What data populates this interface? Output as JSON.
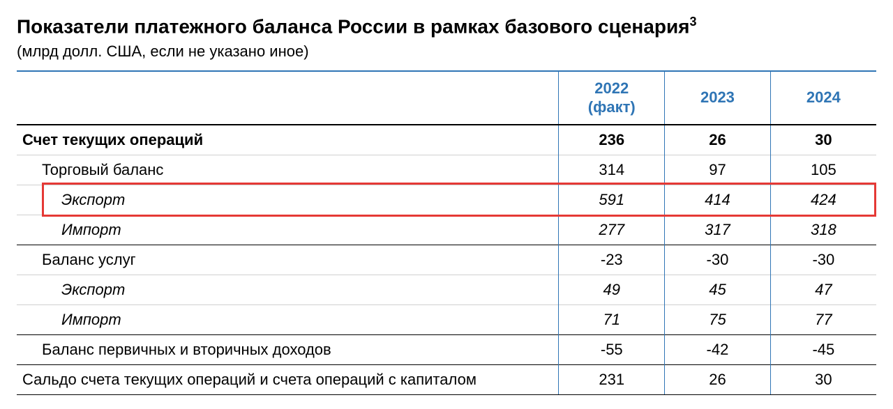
{
  "title_main": "Показатели платежного баланса России в рамках базового сценария",
  "title_footnote": "3",
  "subtitle": "(млрд долл. США, если не указано иное)",
  "table": {
    "columns": [
      {
        "label": "",
        "width_pct": 63
      },
      {
        "label": "2022\n(факт)",
        "width_pct": 12.3
      },
      {
        "label": "2023",
        "width_pct": 12.3
      },
      {
        "label": "2024",
        "width_pct": 12.3
      }
    ],
    "header_color": "#2f75b5",
    "header_fontsize": 22,
    "top_rule_color": "#2f75b5",
    "col_divider_color": "#2f75b5",
    "row_divider_color": "#d0d0d0",
    "section_rule_color": "#000000",
    "rows": [
      {
        "label": "Счет текущих операций",
        "indent": 0,
        "bold": true,
        "italic": false,
        "sep_top": false,
        "values": [
          "236",
          "26",
          "30"
        ]
      },
      {
        "label": "Торговый баланс",
        "indent": 1,
        "bold": false,
        "italic": false,
        "sep_top": false,
        "values": [
          "314",
          "97",
          "105"
        ]
      },
      {
        "label": "Экспорт",
        "indent": 2,
        "bold": false,
        "italic": true,
        "sep_top": false,
        "highlight": true,
        "values": [
          "591",
          "414",
          "424"
        ]
      },
      {
        "label": "Импорт",
        "indent": 2,
        "bold": false,
        "italic": true,
        "sep_top": false,
        "values": [
          "277",
          "317",
          "318"
        ]
      },
      {
        "label": "Баланс услуг",
        "indent": 1,
        "bold": false,
        "italic": false,
        "sep_top": true,
        "values": [
          "-23",
          "-30",
          "-30"
        ]
      },
      {
        "label": "Экспорт",
        "indent": 2,
        "bold": false,
        "italic": true,
        "sep_top": false,
        "values": [
          "49",
          "45",
          "47"
        ]
      },
      {
        "label": "Импорт",
        "indent": 2,
        "bold": false,
        "italic": true,
        "sep_top": false,
        "values": [
          "71",
          "75",
          "77"
        ]
      },
      {
        "label": "Баланс первичных и вторичных доходов",
        "indent": 1,
        "bold": false,
        "italic": false,
        "sep_top": true,
        "values": [
          "-55",
          "-42",
          "-45"
        ]
      },
      {
        "label": "Сальдо счета текущих операций и счета операций с капиталом",
        "indent": 0,
        "bold": false,
        "italic": false,
        "sep_top": true,
        "sep_bottom": true,
        "values": [
          "231",
          "26",
          "30"
        ]
      }
    ],
    "highlight_row_index": 2,
    "highlight_color": "#e53935",
    "highlight_border_width": 3
  }
}
